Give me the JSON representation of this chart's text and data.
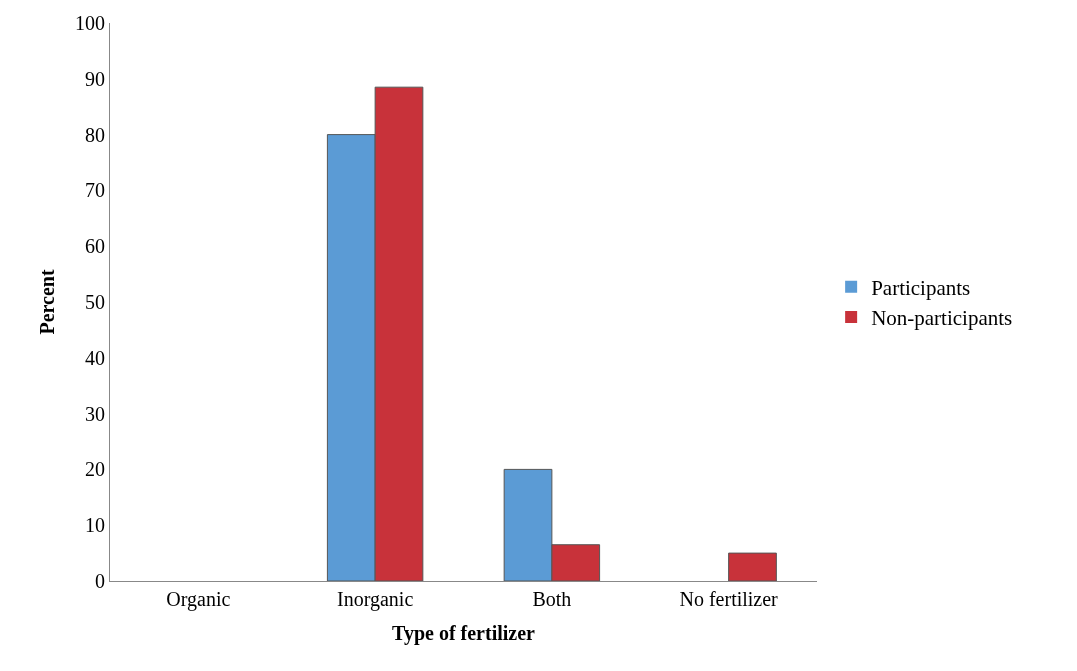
{
  "chart_data": {
    "type": "bar",
    "xlabel": "Type of fertilizer",
    "ylabel": "Percent",
    "categories": [
      "Organic",
      "Inorganic",
      "Both",
      "No fertilizer"
    ],
    "series": [
      {
        "name": "Participants",
        "color": "#5b9bd5",
        "values": [
          0,
          80,
          20,
          0
        ]
      },
      {
        "name": "Non-participants",
        "color": "#c8323a",
        "values": [
          0,
          88.5,
          6.5,
          5
        ]
      }
    ],
    "ylim": [
      0,
      100
    ],
    "yticks": [
      0,
      10,
      20,
      30,
      40,
      50,
      60,
      70,
      80,
      90,
      100
    ],
    "legend": "right"
  }
}
